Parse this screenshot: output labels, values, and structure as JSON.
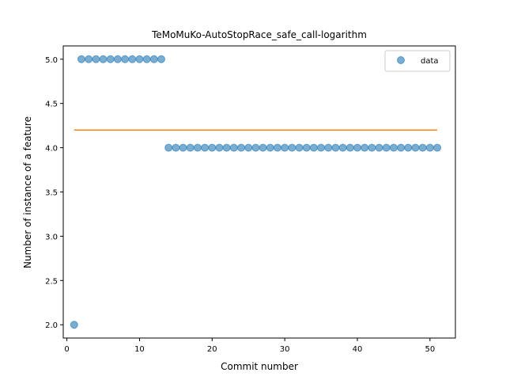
{
  "chart_data": {
    "type": "scatter",
    "title": "TeMoMuKo-AutoStopRace_safe_call-logarithm",
    "xlabel": "Commit number",
    "ylabel": "Number of instance of a feature",
    "xlim": [
      -0.5,
      53.5
    ],
    "ylim": [
      1.85,
      5.15
    ],
    "xticks": [
      0,
      10,
      20,
      30,
      40,
      50
    ],
    "yticks": [
      2.0,
      2.5,
      3.0,
      3.5,
      4.0,
      4.5,
      5.0
    ],
    "legend_position": "top-right",
    "grid": false,
    "series": [
      {
        "name": "data",
        "kind": "scatter",
        "color": "#1f77b4",
        "x": [
          1,
          2,
          3,
          4,
          5,
          6,
          7,
          8,
          9,
          10,
          11,
          12,
          13,
          14,
          15,
          16,
          17,
          18,
          19,
          20,
          21,
          22,
          23,
          24,
          25,
          26,
          27,
          28,
          29,
          30,
          31,
          32,
          33,
          34,
          35,
          36,
          37,
          38,
          39,
          40,
          41,
          42,
          43,
          44,
          45,
          46,
          47,
          48,
          49,
          50,
          51
        ],
        "y": [
          2,
          5,
          5,
          5,
          5,
          5,
          5,
          5,
          5,
          5,
          5,
          5,
          5,
          4,
          4,
          4,
          4,
          4,
          4,
          4,
          4,
          4,
          4,
          4,
          4,
          4,
          4,
          4,
          4,
          4,
          4,
          4,
          4,
          4,
          4,
          4,
          4,
          4,
          4,
          4,
          4,
          4,
          4,
          4,
          4,
          4,
          4,
          4,
          4,
          4,
          4
        ]
      },
      {
        "kind": "line",
        "color": "#ff7f0e",
        "x": [
          1,
          51
        ],
        "y": [
          4.2,
          4.2
        ]
      }
    ]
  }
}
